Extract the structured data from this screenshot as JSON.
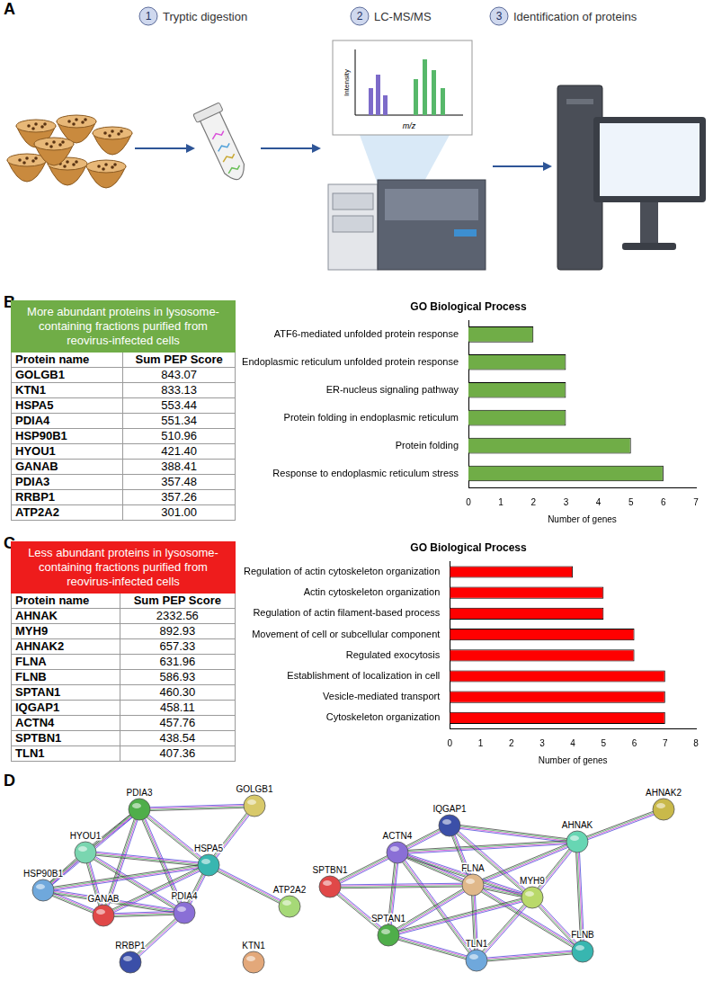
{
  "panel_letters": [
    "A",
    "B",
    "C",
    "D"
  ],
  "workflow": {
    "steps": [
      {
        "number": "1",
        "label": "Tryptic digestion"
      },
      {
        "number": "2",
        "label": "LC-MS/MS"
      },
      {
        "number": "3",
        "label": "Identification of proteins"
      }
    ],
    "spectrum_labels": {
      "x": "m/z",
      "y": "Intensity"
    }
  },
  "tables": [
    {
      "header": "More abundant proteins in lysosome-containing fractions purified from reovirus-infected cells",
      "color": "#70ad47",
      "columns": [
        "Protein name",
        "Sum PEP Score"
      ],
      "rows": [
        [
          "GOLGB1",
          "843.07"
        ],
        [
          "KTN1",
          "833.13"
        ],
        [
          "HSPA5",
          "553.44"
        ],
        [
          "PDIA4",
          "551.34"
        ],
        [
          "HSP90B1",
          "510.96"
        ],
        [
          "HYOU1",
          "421.40"
        ],
        [
          "GANAB",
          "388.41"
        ],
        [
          "PDIA3",
          "357.48"
        ],
        [
          "RRBP1",
          "357.26"
        ],
        [
          "ATP2A2",
          "301.00"
        ]
      ]
    },
    {
      "header": "Less abundant proteins in lysosome-containing fractions purified from reovirus-infected cells",
      "color": "#ee1c1c",
      "columns": [
        "Protein name",
        "Sum PEP Score"
      ],
      "rows": [
        [
          "AHNAK",
          "2332.56"
        ],
        [
          "MYH9",
          "892.93"
        ],
        [
          "AHNAK2",
          "657.33"
        ],
        [
          "FLNA",
          "631.96"
        ],
        [
          "FLNB",
          "586.93"
        ],
        [
          "SPTAN1",
          "460.30"
        ],
        [
          "IQGAP1",
          "458.11"
        ],
        [
          "ACTN4",
          "457.76"
        ],
        [
          "SPTBN1",
          "438.54"
        ],
        [
          "TLN1",
          "407.36"
        ]
      ]
    }
  ],
  "chart_data": [
    {
      "type": "bar",
      "orientation": "horizontal",
      "title": "GO Biological Process",
      "x_label": "Number of genes",
      "categories": [
        "ATF6-mediated unfolded protein response",
        "Endoplasmic reticulum unfolded protein response",
        "ER-nucleus signaling pathway",
        "Protein folding in endoplasmic reticulum",
        "Protein folding",
        "Response to endoplasmic reticulum stress"
      ],
      "values": [
        2,
        3,
        3,
        3,
        5,
        6
      ],
      "color": "#70ad47",
      "xlim": [
        0,
        7
      ],
      "xticks": [
        0,
        1,
        2,
        3,
        4,
        5,
        6,
        7
      ],
      "grid": false,
      "data_labels": false
    },
    {
      "type": "bar",
      "orientation": "horizontal",
      "title": "GO Biological Process",
      "x_label": "Number of genes",
      "categories": [
        "Regulation of actin cytoskeleton organization",
        "Actin cytoskeleton organization",
        "Regulation of actin filament-based process",
        "Movement of cell or subcellular component",
        "Regulated exocytosis",
        "Establishment of localization in cell",
        "Vesicle-mediated transport",
        "Cytoskeleton organization"
      ],
      "values": [
        4,
        5,
        5,
        6,
        6,
        7,
        7,
        7
      ],
      "color": "#ff0000",
      "xlim": [
        0,
        8
      ],
      "xticks": [
        0,
        1,
        2,
        3,
        4,
        5,
        6,
        7,
        8
      ],
      "grid": false,
      "data_labels": false
    }
  ],
  "networks": [
    {
      "nodes": [
        "PDIA3",
        "GOLGB1",
        "HYOU1",
        "HSPA5",
        "ATP2A2",
        "HSP90B1",
        "GANAB",
        "PDIA4",
        "RRBP1",
        "KTN1"
      ],
      "edges": [
        [
          "PDIA3",
          "HYOU1"
        ],
        [
          "PDIA3",
          "HSPA5"
        ],
        [
          "PDIA3",
          "HSP90B1"
        ],
        [
          "PDIA3",
          "GANAB"
        ],
        [
          "PDIA3",
          "PDIA4"
        ],
        [
          "PDIA3",
          "GOLGB1"
        ],
        [
          "GOLGB1",
          "HSPA5"
        ],
        [
          "HYOU1",
          "HSPA5"
        ],
        [
          "HYOU1",
          "HSP90B1"
        ],
        [
          "HYOU1",
          "GANAB"
        ],
        [
          "HYOU1",
          "PDIA4"
        ],
        [
          "HSPA5",
          "HSP90B1"
        ],
        [
          "HSPA5",
          "GANAB"
        ],
        [
          "HSPA5",
          "PDIA4"
        ],
        [
          "HSPA5",
          "ATP2A2"
        ],
        [
          "HSP90B1",
          "GANAB"
        ],
        [
          "HSP90B1",
          "PDIA4"
        ],
        [
          "GANAB",
          "PDIA4"
        ],
        [
          "PDIA4",
          "RRBP1"
        ]
      ]
    },
    {
      "nodes": [
        "AHNAK2",
        "IQGAP1",
        "AHNAK",
        "ACTN4",
        "SPTBN1",
        "FLNA",
        "MYH9",
        "SPTAN1",
        "FLNB",
        "TLN1"
      ],
      "edges": [
        [
          "AHNAK2",
          "AHNAK"
        ],
        [
          "AHNAK",
          "IQGAP1"
        ],
        [
          "AHNAK",
          "ACTN4"
        ],
        [
          "AHNAK",
          "FLNA"
        ],
        [
          "AHNAK",
          "MYH9"
        ],
        [
          "AHNAK",
          "FLNB"
        ],
        [
          "IQGAP1",
          "ACTN4"
        ],
        [
          "IQGAP1",
          "FLNA"
        ],
        [
          "IQGAP1",
          "MYH9"
        ],
        [
          "ACTN4",
          "SPTBN1"
        ],
        [
          "ACTN4",
          "FLNA"
        ],
        [
          "ACTN4",
          "SPTAN1"
        ],
        [
          "ACTN4",
          "TLN1"
        ],
        [
          "ACTN4",
          "MYH9"
        ],
        [
          "SPTBN1",
          "SPTAN1"
        ],
        [
          "SPTBN1",
          "FLNA"
        ],
        [
          "FLNA",
          "MYH9"
        ],
        [
          "FLNA",
          "SPTAN1"
        ],
        [
          "FLNA",
          "TLN1"
        ],
        [
          "FLNA",
          "FLNB"
        ],
        [
          "MYH9",
          "FLNB"
        ],
        [
          "MYH9",
          "SPTAN1"
        ],
        [
          "MYH9",
          "TLN1"
        ],
        [
          "SPTAN1",
          "TLN1"
        ],
        [
          "TLN1",
          "FLNB"
        ]
      ]
    }
  ]
}
